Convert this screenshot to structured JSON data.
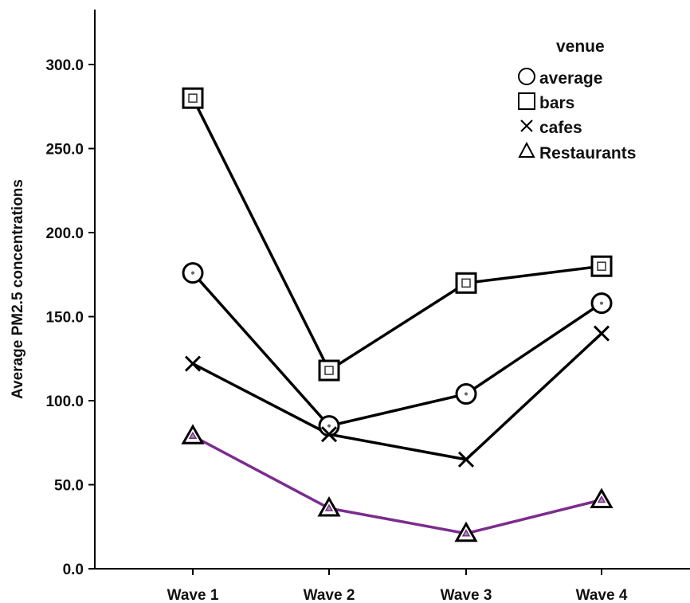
{
  "chart_data": {
    "type": "line",
    "title": "",
    "xlabel": "",
    "ylabel": "Average PM2.5 concentrations",
    "categories": [
      "Wave 1",
      "Wave 2",
      "Wave 3",
      "Wave 4"
    ],
    "ylim": [
      0,
      330
    ],
    "yticks": [
      "0.0",
      "50.0",
      "100.0",
      "150.0",
      "200.0",
      "250.0",
      "300.0"
    ],
    "grid": false,
    "legend": {
      "title": "venue",
      "position": "top-right"
    },
    "series": [
      {
        "name": "average",
        "marker": "circle",
        "color": "#000000",
        "values": [
          176,
          85,
          104,
          158
        ]
      },
      {
        "name": "bars",
        "marker": "square",
        "color": "#000000",
        "values": [
          280,
          118,
          170,
          180
        ]
      },
      {
        "name": "cafes",
        "marker": "x",
        "color": "#000000",
        "values": [
          122,
          80,
          65,
          140
        ]
      },
      {
        "name": "Restaurants",
        "marker": "triangle",
        "color": "#7B2C8E",
        "values": [
          79,
          36,
          21,
          41
        ]
      }
    ]
  }
}
